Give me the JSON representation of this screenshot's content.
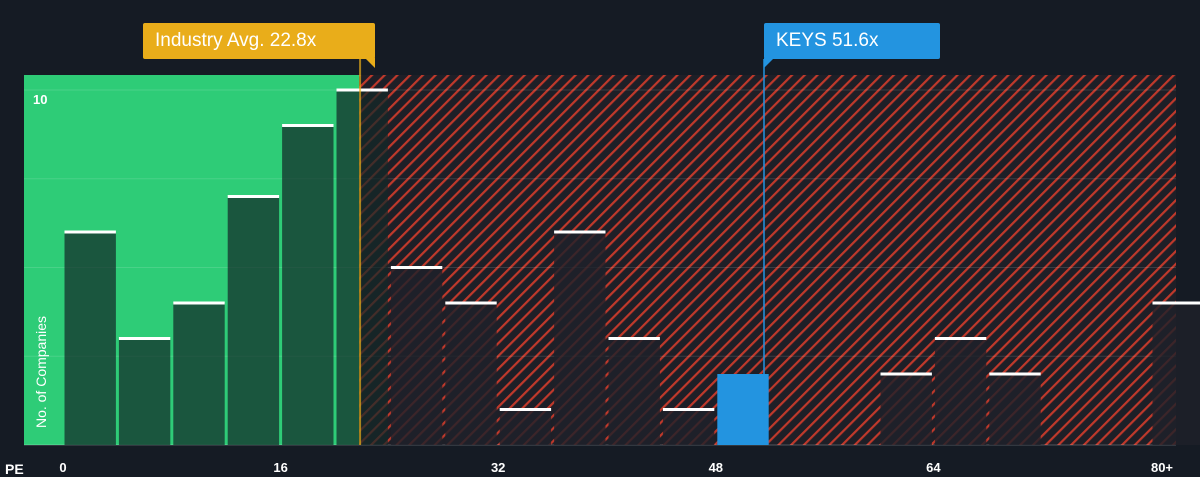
{
  "colors": {
    "background": "#151b24",
    "fair_zone": "#2ecc77",
    "overvalued_zone": "#c0392b",
    "bar_fill": "#1f2b2e",
    "bar_cap": "#ffffff",
    "industry": "#e9ad1a",
    "company": "#2394e0"
  },
  "chart_data": {
    "type": "bar",
    "x_unit_label": "PE",
    "ylabel": "No. of Companies",
    "ylim": [
      0,
      10
    ],
    "y_tick_labels": [
      {
        "value": 10,
        "label": "10"
      }
    ],
    "x_tick_labels": [
      {
        "value": 0,
        "label": "0"
      },
      {
        "value": 16,
        "label": "16"
      },
      {
        "value": 32,
        "label": "32"
      },
      {
        "value": 48,
        "label": "48"
      },
      {
        "value": 64,
        "label": "64"
      },
      {
        "value": 80,
        "label": "80+"
      }
    ],
    "bin_width": 4,
    "bins": [
      {
        "start": 0,
        "count": 6
      },
      {
        "start": 4,
        "count": 3
      },
      {
        "start": 8,
        "count": 4
      },
      {
        "start": 12,
        "count": 7
      },
      {
        "start": 16,
        "count": 9
      },
      {
        "start": 20,
        "count": 10
      },
      {
        "start": 24,
        "count": 5
      },
      {
        "start": 28,
        "count": 4
      },
      {
        "start": 32,
        "count": 1
      },
      {
        "start": 36,
        "count": 6
      },
      {
        "start": 40,
        "count": 3
      },
      {
        "start": 44,
        "count": 1
      },
      {
        "start": 48,
        "count": 2,
        "highlight": true
      },
      {
        "start": 52,
        "count": 0
      },
      {
        "start": 56,
        "count": 0
      },
      {
        "start": 60,
        "count": 2
      },
      {
        "start": 64,
        "count": 3
      },
      {
        "start": 68,
        "count": 2
      },
      {
        "start": 72,
        "count": 0
      },
      {
        "start": 76,
        "count": 0
      },
      {
        "start": 80,
        "count": 4
      }
    ],
    "industry_avg": {
      "value": 22.8,
      "label": "Industry Avg. 22.8x"
    },
    "company": {
      "ticker": "KEYS",
      "value": 51.6,
      "label": "KEYS 51.6x"
    },
    "gridlines": true
  }
}
